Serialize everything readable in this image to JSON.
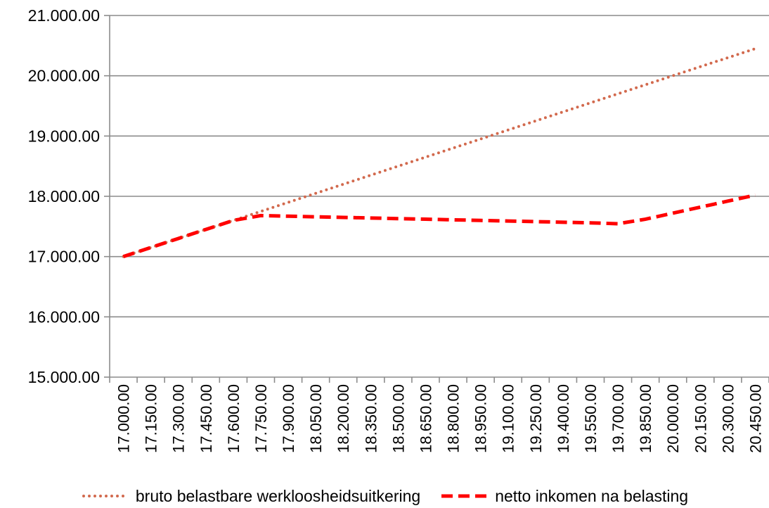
{
  "chart_data": {
    "type": "line",
    "x": [
      "17.000.00",
      "17.150.00",
      "17.300.00",
      "17.450.00",
      "17.600.00",
      "17.750.00",
      "17.900.00",
      "18.050.00",
      "18.200.00",
      "18.350.00",
      "18.500.00",
      "18.650.00",
      "18.800.00",
      "18.950.00",
      "19.100.00",
      "19.250.00",
      "19.400.00",
      "19.550.00",
      "19.700.00",
      "19.850.00",
      "20.000.00",
      "20.150.00",
      "20.300.00",
      "20.450.00"
    ],
    "series": [
      {
        "name": "bruto belastbare werkloosheidsuitkering",
        "color": "#D2694D",
        "style": "dotted",
        "values": [
          17000,
          17150,
          17300,
          17450,
          17600,
          17750,
          17900,
          18050,
          18200,
          18350,
          18500,
          18650,
          18800,
          18950,
          19100,
          19250,
          19400,
          19550,
          19700,
          19850,
          20000,
          20150,
          20300,
          20450
        ]
      },
      {
        "name": "netto inkomen na belasting",
        "color": "#FF0000",
        "style": "dashed",
        "values": [
          17000,
          17150,
          17300,
          17450,
          17600,
          17680,
          17670,
          17660,
          17650,
          17640,
          17630,
          17620,
          17610,
          17600,
          17590,
          17580,
          17570,
          17560,
          17545,
          17620,
          17720,
          17820,
          17920,
          18020
        ]
      }
    ],
    "y_ticks": [
      "15.000.00",
      "16.000.00",
      "17.000.00",
      "18.000.00",
      "19.000.00",
      "20.000.00",
      "21.000.00"
    ],
    "ylim": [
      15000,
      21000
    ],
    "grid": true,
    "legend_position": "bottom",
    "title": "",
    "xlabel": "",
    "ylabel": ""
  }
}
